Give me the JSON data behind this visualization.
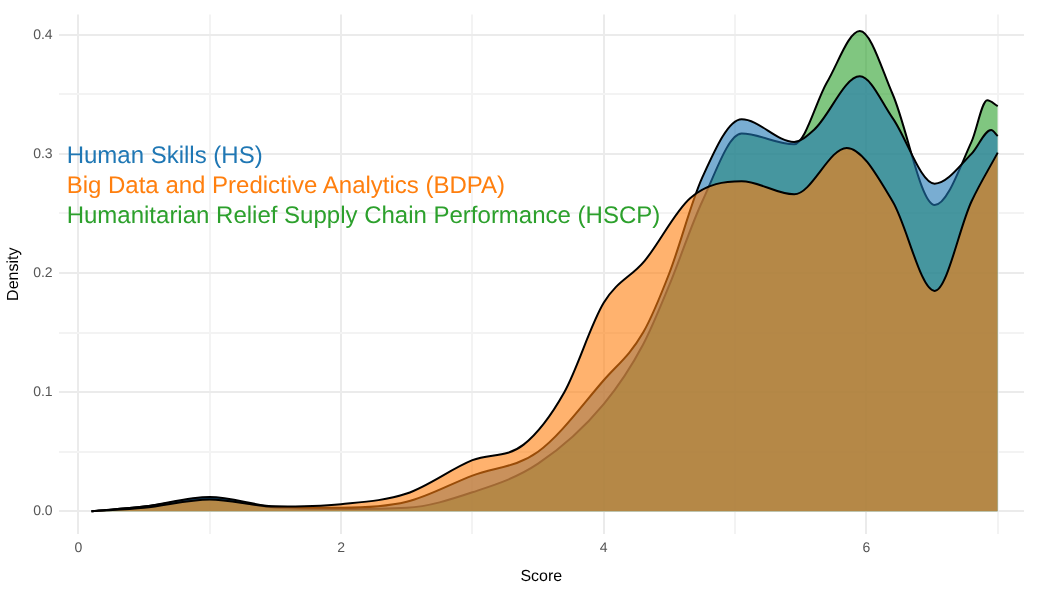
{
  "chart_data": {
    "type": "area",
    "xlabel": "Score",
    "ylabel": "Density",
    "legend": "top left",
    "grid": true,
    "marker": "none",
    "line_style": "solid",
    "xlim": [
      -0.15,
      7.2
    ],
    "ylim": [
      -0.019,
      0.417
    ],
    "xticks": [
      0,
      {
        "value": 1,
        "label": null
      },
      2,
      {
        "value": 3,
        "label": null
      },
      4,
      {
        "value": 5,
        "label": null
      },
      6,
      {
        "value": 7,
        "label": null
      }
    ],
    "yticks": [
      {
        "value": 0,
        "label": "0.0"
      },
      {
        "value": 0.05,
        "label": null
      },
      0.1,
      {
        "value": 0.15,
        "label": null
      },
      0.2,
      {
        "value": 0.25,
        "label": null
      },
      0.3,
      {
        "value": 0.35,
        "label": null
      },
      0.4
    ],
    "series": [
      {
        "name": "Big Data and Predictive Analytics (BDPA)",
        "color": "#ff7f0e",
        "x": [
          0.1,
          0.5,
          1,
          1.5,
          2,
          2.5,
          3,
          3.39,
          3.7,
          4,
          4.31,
          4.66,
          5.05,
          5.45,
          5.85,
          6.2,
          6.52,
          6.8,
          7
        ],
        "values": [
          0,
          0.003,
          0.01,
          0.004,
          0.006,
          0.015,
          0.043,
          0.056,
          0.1,
          0.175,
          0.21,
          0.263,
          0.277,
          0.266,
          0.305,
          0.26,
          0.185,
          0.26,
          0.301
        ]
      },
      {
        "name": "Human Skills (HS)",
        "color": "#1f77b4",
        "x": [
          0.1,
          0.5,
          1,
          1.5,
          2,
          2.5,
          3,
          3.5,
          4,
          4.3,
          4.5,
          4.75,
          5.05,
          5.45,
          5.6,
          5.95,
          6.2,
          6.52,
          6.8,
          6.95,
          7
        ],
        "values": [
          0,
          0.004,
          0.012,
          0.004,
          0.003,
          0.008,
          0.03,
          0.05,
          0.11,
          0.15,
          0.2,
          0.28,
          0.329,
          0.31,
          0.32,
          0.365,
          0.33,
          0.275,
          0.3,
          0.32,
          0.315
        ]
      },
      {
        "name": "Humanitarian Relief Supply Chain Performance (HSCP)",
        "color": "#2ca02c",
        "x": [
          0.1,
          0.5,
          1,
          1.5,
          2,
          2.5,
          3,
          3.5,
          4,
          4.3,
          4.5,
          4.75,
          5.05,
          5.45,
          5.7,
          5.95,
          6.2,
          6.52,
          6.8,
          6.92,
          7
        ],
        "values": [
          0,
          0.004,
          0.011,
          0.003,
          0.002,
          0.003,
          0.016,
          0.04,
          0.09,
          0.14,
          0.19,
          0.26,
          0.317,
          0.308,
          0.36,
          0.403,
          0.35,
          0.257,
          0.31,
          0.345,
          0.34
        ]
      }
    ]
  }
}
